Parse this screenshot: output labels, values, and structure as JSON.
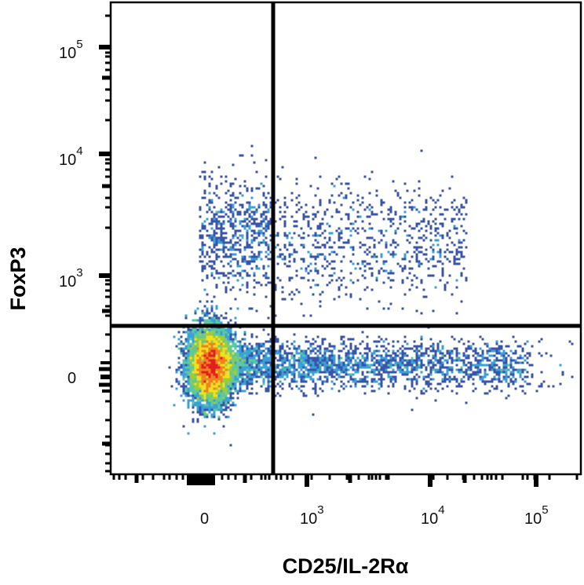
{
  "chart_data": {
    "type": "heatmap",
    "subtype": "flow-cytometry-density-dot-plot",
    "title": "",
    "xlabel": "CD25/IL-2Rα",
    "ylabel": "FoxP3",
    "x_scale": "biexponential",
    "y_scale": "biexponential",
    "x_ticks": [
      {
        "label": "0",
        "base": "0",
        "exp": ""
      },
      {
        "label": "10^3",
        "base": "10",
        "exp": "3"
      },
      {
        "label": "10^4",
        "base": "10",
        "exp": "4"
      },
      {
        "label": "10^5",
        "base": "10",
        "exp": "5"
      }
    ],
    "y_ticks": [
      {
        "label": "10^5",
        "base": "10",
        "exp": "5"
      },
      {
        "label": "10^4",
        "base": "10",
        "exp": "4"
      },
      {
        "label": "10^3",
        "base": "10",
        "exp": "3"
      },
      {
        "label": "0",
        "base": "0",
        "exp": ""
      }
    ],
    "quadrant_gates": {
      "vertical_x_approx": 500,
      "horizontal_y_approx": 300
    },
    "populations": [
      {
        "name": "CD25- FoxP3- (main dense cluster)",
        "x_center": 0,
        "y_center": 0,
        "density": "high"
      },
      {
        "name": "CD25+ FoxP3- (horizontal tail)",
        "x_range": [
          500,
          30000
        ],
        "y_center": 0,
        "density": "medium"
      },
      {
        "name": "CD25- FoxP3+",
        "x_range": [
          0,
          500
        ],
        "y_range": [
          500,
          3000
        ],
        "density": "low"
      },
      {
        "name": "CD25+ FoxP3+ (Tregs)",
        "x_range": [
          500,
          20000
        ],
        "y_range": [
          500,
          4000
        ],
        "density": "low"
      }
    ],
    "colormap": [
      "#3a55a8",
      "#3aa0d8",
      "#5cc8a0",
      "#9ccc3c",
      "#f0e020",
      "#f08020",
      "#e02020"
    ],
    "grid": false,
    "legend": null
  }
}
